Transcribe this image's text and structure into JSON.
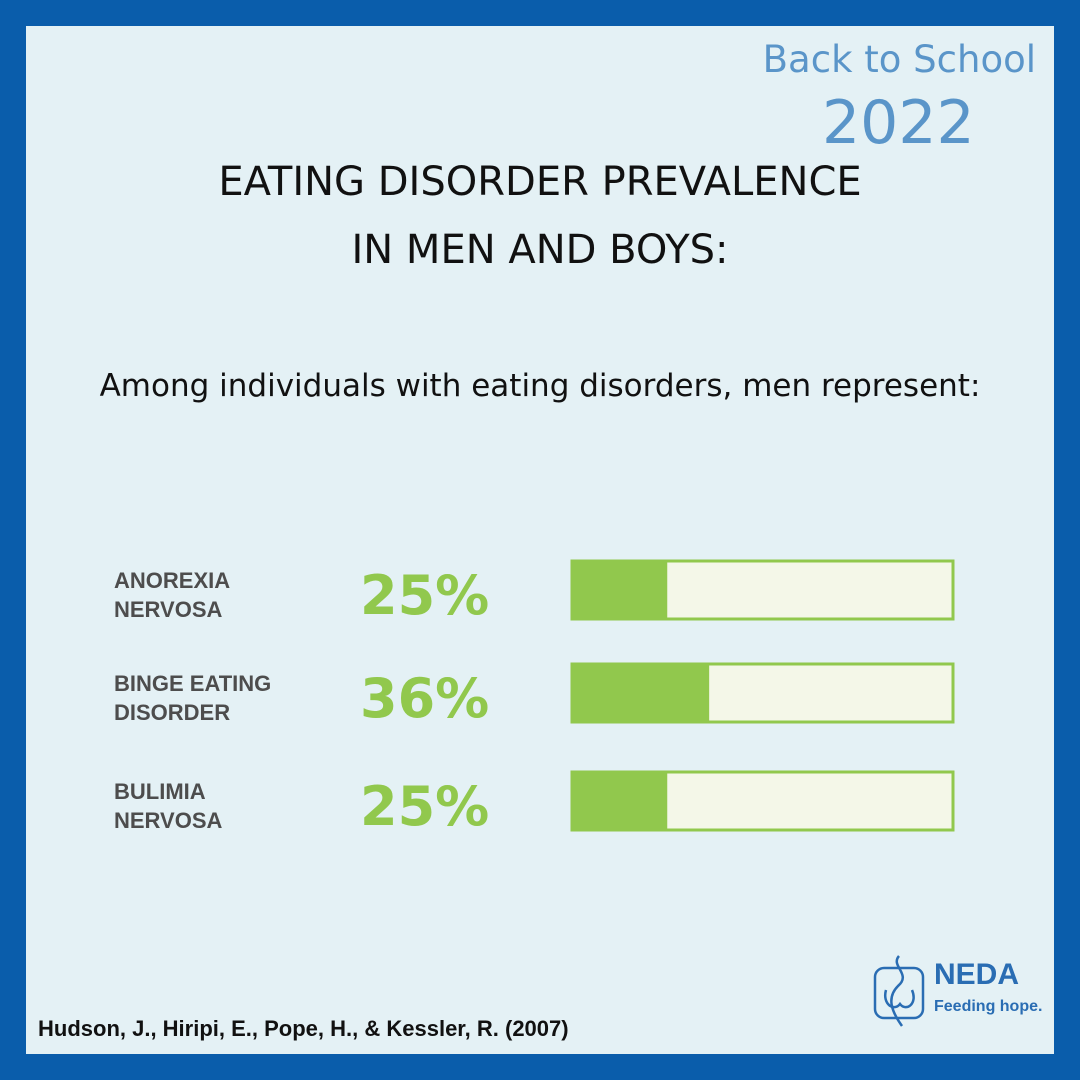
{
  "brand": {
    "line1": "Back to School",
    "line2": "2022"
  },
  "title": {
    "line1": "EATING DISORDER PREVALENCE",
    "line2": "IN MEN AND BOYS:"
  },
  "subtitle": "Among individuals with eating disorders, men represent:",
  "chart_data": {
    "type": "bar",
    "categories": [
      [
        "ANOREXIA",
        "NERVOSA"
      ],
      [
        "BINGE EATING",
        "DISORDER"
      ],
      [
        "BULIMIA",
        "NERVOSA"
      ]
    ],
    "values": [
      25,
      36,
      25
    ],
    "value_labels": [
      "25%",
      "36%",
      "25%"
    ],
    "xlim": [
      0,
      100
    ],
    "orientation": "horizontal",
    "fill_color": "#91c84d",
    "track_color": "#f4f7e8"
  },
  "source": "Hudson, J., Hiripi, E., Pope, H., & Kessler, R. (2007)",
  "logo": {
    "name": "NEDA",
    "tagline": "Feeding hope."
  }
}
